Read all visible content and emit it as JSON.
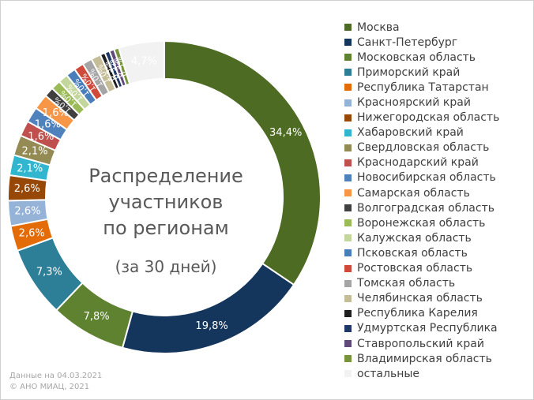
{
  "chart_data": {
    "type": "pie",
    "variant": "donut",
    "title": "Распределение участников по регионам",
    "title_lines": [
      "Распределение",
      "участников",
      "по регионам"
    ],
    "subtitle": "(за 30 дней)",
    "legend_position": "right",
    "slices": [
      {
        "label": "Москва",
        "value": 34.4,
        "value_label": "34,4%",
        "color": "#4e6b24"
      },
      {
        "label": "Санкт-Петербург",
        "value": 19.8,
        "value_label": "19,8%",
        "color": "#14355c"
      },
      {
        "label": "Московская область",
        "value": 7.8,
        "value_label": "7,8%",
        "color": "#5f8231"
      },
      {
        "label": "Приморский край",
        "value": 7.3,
        "value_label": "7,3%",
        "color": "#2c7f97"
      },
      {
        "label": "Республика Татарстан",
        "value": 2.6,
        "value_label": "2,6%",
        "color": "#e36c09"
      },
      {
        "label": "Красноярский край",
        "value": 2.6,
        "value_label": "2,6%",
        "color": "#95b3d7"
      },
      {
        "label": "Нижегородская область",
        "value": 2.6,
        "value_label": "2,6%",
        "color": "#974806"
      },
      {
        "label": "Хабаровский край",
        "value": 2.1,
        "value_label": "2,1%",
        "color": "#31b6cf"
      },
      {
        "label": "Свердловская область",
        "value": 2.1,
        "value_label": "2,1%",
        "color": "#948a54"
      },
      {
        "label": "Краснодарский край",
        "value": 1.6,
        "value_label": "1,6%",
        "color": "#c0504d"
      },
      {
        "label": "Новосибирская область",
        "value": 1.6,
        "value_label": "1,6%",
        "color": "#4f81bd"
      },
      {
        "label": "Самарская область",
        "value": 1.6,
        "value_label": "1,6%",
        "color": "#f79646"
      },
      {
        "label": "Волгоградская область",
        "value": 1.0,
        "value_label": "1,0%",
        "color": "#404040"
      },
      {
        "label": "Воронежская область",
        "value": 1.0,
        "value_label": "1,0%",
        "color": "#9bbb59"
      },
      {
        "label": "Калужская область",
        "value": 1.0,
        "value_label": "1,0%",
        "color": "#c3d69b"
      },
      {
        "label": "Псковская область",
        "value": 1.0,
        "value_label": "1,0%",
        "color": "#4a7ebb"
      },
      {
        "label": "Ростовская область",
        "value": 1.0,
        "value_label": "1,0%",
        "color": "#d04a3c"
      },
      {
        "label": "Томская область",
        "value": 1.0,
        "value_label": "1,0%",
        "color": "#a5a5a5"
      },
      {
        "label": "Челябинская область",
        "value": 1.0,
        "value_label": "1,0%",
        "color": "#c4bd97"
      },
      {
        "label": "Республика Карелия",
        "value": 0.5,
        "value_label": "0,5%",
        "color": "#1f1f1f"
      },
      {
        "label": "Удмуртская Республика",
        "value": 0.5,
        "value_label": "0,5%",
        "color": "#1f3864"
      },
      {
        "label": "Ставропольский край",
        "value": 0.5,
        "value_label": "0,5%",
        "color": "#604a7b"
      },
      {
        "label": "Владимирская область",
        "value": 0.5,
        "value_label": "0,5%",
        "color": "#77933c"
      },
      {
        "label": "остальные",
        "value": 4.7,
        "value_label": "4,7%",
        "color": "#f2f2f2"
      }
    ]
  },
  "footer": {
    "line1": "Данные на 04.03.2021",
    "line2": "© АНО МИАЦ, 2021"
  }
}
